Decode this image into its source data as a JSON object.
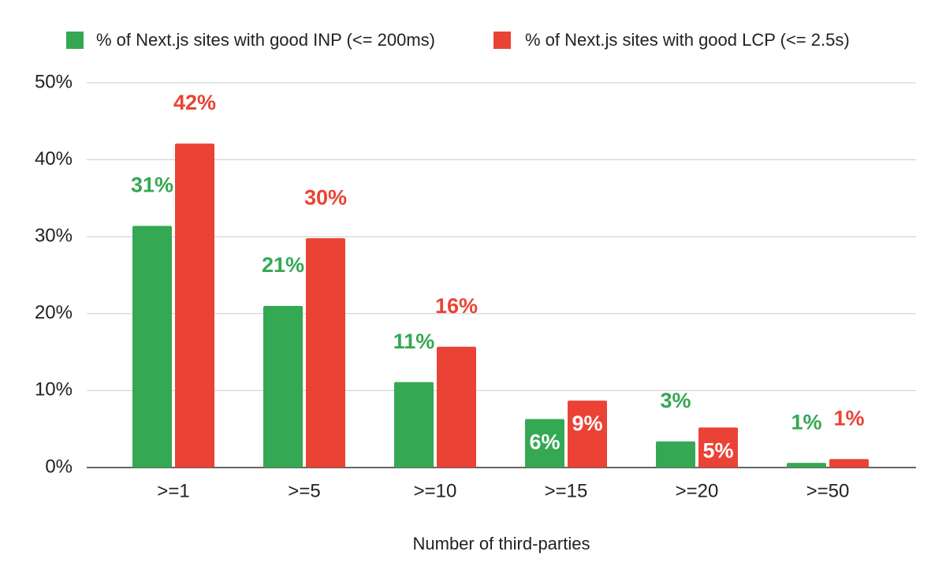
{
  "chart_data": {
    "type": "bar",
    "x_label": "Number of third-parties",
    "categories": [
      ">=1",
      ">=5",
      ">=10",
      ">=15",
      ">=20",
      ">=50"
    ],
    "series": [
      {
        "name": "% of Next.js sites with good INP (<= 200ms)",
        "color": "#34a853",
        "values": [
          31.4,
          21.0,
          11.1,
          6.3,
          3.4,
          0.6
        ],
        "value_labels": [
          "31%",
          "21%",
          "11%",
          "6%",
          "3%",
          "1%"
        ]
      },
      {
        "name": "% of Next.js sites with good LCP (<= 2.5s)",
        "color": "#ea4335",
        "values": [
          42.1,
          29.8,
          15.7,
          8.7,
          5.2,
          1.1
        ],
        "value_labels": [
          "42%",
          "30%",
          "16%",
          "9%",
          "5%",
          "1%"
        ]
      }
    ],
    "ylim": [
      0,
      50
    ],
    "yticks": [
      {
        "value": 0,
        "label": "0%"
      },
      {
        "value": 10,
        "label": "10%"
      },
      {
        "value": 20,
        "label": "20%"
      },
      {
        "value": 30,
        "label": "30%"
      },
      {
        "value": 40,
        "label": "40%"
      },
      {
        "value": 50,
        "label": "50%"
      }
    ],
    "grid": true,
    "legend": "top"
  }
}
